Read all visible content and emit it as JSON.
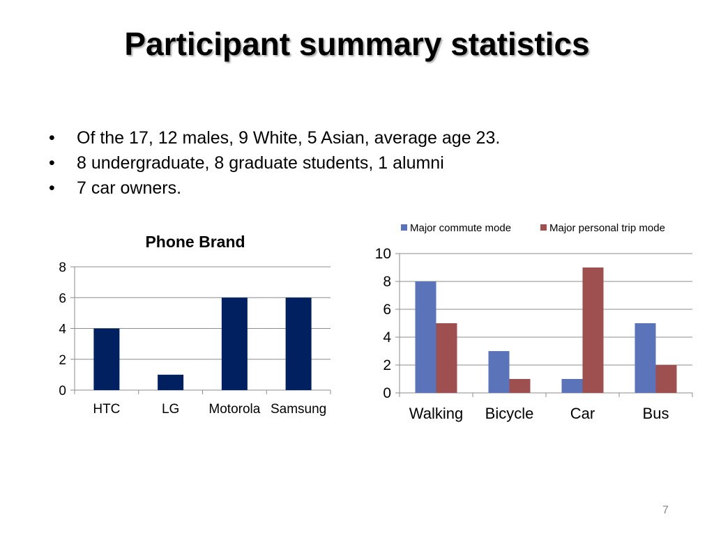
{
  "slide": {
    "title": "Participant summary statistics",
    "bullets": [
      "Of the 17, 12 males, 9 White, 5 Asian, average age 23.",
      "8 undergraduate, 8 graduate students, 1 alumni",
      "7 car owners."
    ],
    "page_number": "7"
  },
  "chart_data": [
    {
      "type": "bar",
      "title": "Phone Brand",
      "categories": [
        "HTC",
        "LG",
        "Motorola",
        "Samsung"
      ],
      "values": [
        4,
        1,
        6,
        6
      ],
      "ylim": [
        0,
        8
      ],
      "yticks": [
        0,
        2,
        4,
        6,
        8
      ],
      "grid": true,
      "color": "#002060"
    },
    {
      "type": "bar",
      "title": "",
      "categories": [
        "Walking",
        "Bicycle",
        "Car",
        "Bus"
      ],
      "series": [
        {
          "name": "Major commute mode",
          "values": [
            8,
            3,
            1,
            5
          ],
          "color": "#5B73B8"
        },
        {
          "name": "Major personal trip mode",
          "values": [
            5,
            1,
            9,
            2
          ],
          "color": "#9E4F50"
        }
      ],
      "ylim": [
        0,
        10
      ],
      "yticks": [
        0,
        2,
        4,
        6,
        8,
        10
      ],
      "grid": true,
      "legend": "top"
    }
  ]
}
